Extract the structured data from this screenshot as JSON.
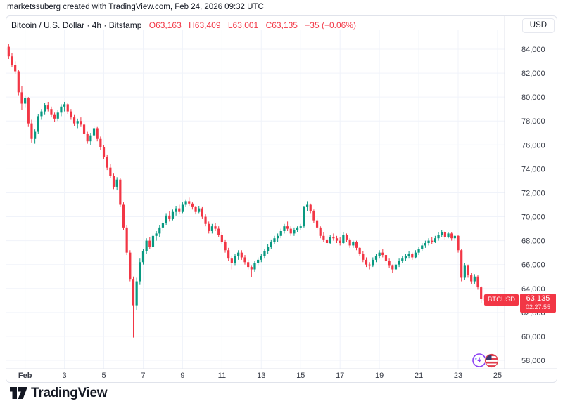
{
  "attribution": "marketssuberg created with TradingView.com, Feb 24, 2026 09:32 UTC",
  "header": {
    "symbol_line": "Bitcoin / U.S. Dollar · 4h · Bitstamp",
    "ohlc": {
      "open": "O63,163",
      "high": "H63,409",
      "low": "L63,001",
      "close": "C63,135",
      "change": "−35 (−0.06%)"
    },
    "currency_button": "USD"
  },
  "price_scale": {
    "labels": [
      "84,000",
      "82,000",
      "80,000",
      "78,000",
      "76,000",
      "74,000",
      "72,000",
      "70,000",
      "68,000",
      "66,000",
      "64,000",
      "62,000",
      "60,000",
      "58,000"
    ],
    "values": [
      84000,
      82000,
      80000,
      78000,
      76000,
      74000,
      72000,
      70000,
      68000,
      66000,
      64000,
      62000,
      60000,
      58000
    ]
  },
  "time_scale": {
    "ticks": [
      {
        "label": "Feb",
        "index": 5,
        "bold": true
      },
      {
        "label": "3",
        "index": 17
      },
      {
        "label": "5",
        "index": 29
      },
      {
        "label": "7",
        "index": 41
      },
      {
        "label": "9",
        "index": 53
      },
      {
        "label": "11",
        "index": 65
      },
      {
        "label": "13",
        "index": 77
      },
      {
        "label": "15",
        "index": 89
      },
      {
        "label": "17",
        "index": 101
      },
      {
        "label": "19",
        "index": 113
      },
      {
        "label": "21",
        "index": 125
      },
      {
        "label": "23",
        "index": 137
      },
      {
        "label": "25",
        "index": 149
      }
    ]
  },
  "last_price": {
    "badge": "BTCUSD",
    "price": "63,135",
    "countdown": "02:27:55",
    "value": 63135
  },
  "footer": {
    "brand": "TradingView"
  },
  "icons": {
    "left": "crypto-lightning-icon",
    "right": "us-flag-icon"
  },
  "colors": {
    "up": "#089981",
    "down": "#f23645",
    "grid": "#f0f3fa",
    "border": "#e0e3eb",
    "text": "#131722",
    "axis_text": "#363a45",
    "label_bg": "#f23645"
  },
  "chart_data": {
    "type": "candlestick",
    "title": "Bitcoin / U.S. Dollar",
    "symbol": "BTCUSD",
    "exchange": "Bitstamp",
    "interval": "4h",
    "x_range": "Jan 31 04:00 – Feb 24 08:00 UTC",
    "ylim": [
      57000,
      85500
    ],
    "y_tick_step": 2000,
    "current": {
      "open": 63163,
      "high": 63409,
      "low": 63001,
      "close": 63135,
      "change": -35,
      "change_pct": -0.06
    },
    "candles": [
      [
        84200,
        84420,
        83180,
        83400
      ],
      [
        83400,
        83650,
        82520,
        82700
      ],
      [
        82700,
        82980,
        81900,
        82150
      ],
      [
        82150,
        82300,
        80150,
        80400
      ],
      [
        80400,
        80900,
        78900,
        79450
      ],
      [
        79450,
        80150,
        79100,
        79900
      ],
      [
        79900,
        80000,
        77500,
        77800
      ],
      [
        77800,
        78100,
        76200,
        76500
      ],
      [
        76500,
        77300,
        76100,
        77100
      ],
      [
        77100,
        78600,
        76900,
        78400
      ],
      [
        78400,
        79000,
        78100,
        78800
      ],
      [
        78800,
        79500,
        78500,
        79300
      ],
      [
        79300,
        79600,
        78800,
        79000
      ],
      [
        79000,
        79200,
        78300,
        78500
      ],
      [
        78500,
        78700,
        77900,
        78200
      ],
      [
        78200,
        78900,
        78000,
        78700
      ],
      [
        78700,
        79400,
        78400,
        79200
      ],
      [
        79200,
        79600,
        78800,
        79400
      ],
      [
        79400,
        79500,
        78600,
        78800
      ],
      [
        78800,
        79000,
        78100,
        78300
      ],
      [
        78300,
        78500,
        77600,
        77800
      ],
      [
        77800,
        78200,
        77400,
        78000
      ],
      [
        78000,
        78300,
        77500,
        77700
      ],
      [
        77700,
        77900,
        76700,
        76900
      ],
      [
        76900,
        77100,
        76100,
        76300
      ],
      [
        76300,
        77000,
        76000,
        76800
      ],
      [
        76800,
        77600,
        76500,
        77400
      ],
      [
        77400,
        77500,
        76300,
        76500
      ],
      [
        76500,
        76700,
        75600,
        75800
      ],
      [
        75800,
        76000,
        74800,
        75000
      ],
      [
        75000,
        75200,
        73900,
        74100
      ],
      [
        74100,
        74400,
        73200,
        73400
      ],
      [
        73400,
        73600,
        72300,
        72500
      ],
      [
        72500,
        73300,
        72200,
        73100
      ],
      [
        73100,
        73200,
        70800,
        71000
      ],
      [
        71000,
        71200,
        68900,
        69100
      ],
      [
        69100,
        69300,
        66800,
        67000
      ],
      [
        67000,
        67200,
        64600,
        64800
      ],
      [
        64800,
        65000,
        59900,
        62600
      ],
      [
        62600,
        64900,
        62200,
        64600
      ],
      [
        64600,
        66500,
        64300,
        66200
      ],
      [
        66200,
        67300,
        66000,
        67100
      ],
      [
        67100,
        68200,
        66900,
        68000
      ],
      [
        68000,
        68300,
        67300,
        67500
      ],
      [
        67500,
        68600,
        67400,
        68400
      ],
      [
        68400,
        68800,
        68000,
        68600
      ],
      [
        68600,
        69300,
        68300,
        69100
      ],
      [
        69100,
        69700,
        68800,
        69500
      ],
      [
        69500,
        70300,
        69300,
        70100
      ],
      [
        70100,
        70500,
        69600,
        69800
      ],
      [
        69800,
        70600,
        69700,
        70400
      ],
      [
        70400,
        70900,
        70100,
        70700
      ],
      [
        70700,
        71000,
        70200,
        70400
      ],
      [
        70400,
        71200,
        70300,
        71000
      ],
      [
        71000,
        71400,
        70800,
        71300
      ],
      [
        71300,
        71600,
        70900,
        71100
      ],
      [
        71100,
        71200,
        70600,
        70800
      ],
      [
        70800,
        70900,
        70200,
        70400
      ],
      [
        70400,
        70900,
        70300,
        70700
      ],
      [
        70700,
        70800,
        69800,
        70000
      ],
      [
        70000,
        70200,
        69200,
        69400
      ],
      [
        69400,
        69600,
        68600,
        68800
      ],
      [
        68800,
        69400,
        68600,
        69200
      ],
      [
        69200,
        69500,
        68800,
        69000
      ],
      [
        69000,
        69200,
        68300,
        68500
      ],
      [
        68500,
        68700,
        67700,
        67900
      ],
      [
        67900,
        68100,
        67000,
        67200
      ],
      [
        67200,
        67400,
        66300,
        66500
      ],
      [
        66500,
        66700,
        65600,
        66100
      ],
      [
        66100,
        66900,
        65900,
        66700
      ],
      [
        66700,
        67200,
        66400,
        67000
      ],
      [
        67000,
        67200,
        66400,
        66600
      ],
      [
        66600,
        66800,
        66000,
        66200
      ],
      [
        66200,
        66400,
        65600,
        65800
      ],
      [
        65800,
        65900,
        64950,
        65600
      ],
      [
        65600,
        66300,
        65400,
        66100
      ],
      [
        66100,
        66600,
        65900,
        66400
      ],
      [
        66400,
        66900,
        66200,
        66700
      ],
      [
        66700,
        67300,
        66500,
        67100
      ],
      [
        67100,
        67700,
        66900,
        67500
      ],
      [
        67500,
        68100,
        67300,
        67900
      ],
      [
        67900,
        68400,
        67700,
        68200
      ],
      [
        68200,
        68600,
        67900,
        68400
      ],
      [
        68400,
        69000,
        68200,
        68800
      ],
      [
        68800,
        69400,
        68600,
        69200
      ],
      [
        69200,
        69600,
        68800,
        69000
      ],
      [
        69000,
        69200,
        68400,
        68600
      ],
      [
        68600,
        69100,
        68400,
        68900
      ],
      [
        68900,
        69200,
        68700,
        69100
      ],
      [
        69100,
        69400,
        68900,
        69200
      ],
      [
        69200,
        70900,
        69100,
        70800
      ],
      [
        70800,
        71300,
        70500,
        71000
      ],
      [
        71000,
        71100,
        70300,
        70500
      ],
      [
        70500,
        70600,
        69500,
        69700
      ],
      [
        69700,
        69900,
        68900,
        69100
      ],
      [
        69100,
        69200,
        68200,
        68400
      ],
      [
        68400,
        68700,
        67900,
        68100
      ],
      [
        68100,
        68400,
        67600,
        67800
      ],
      [
        67800,
        68500,
        67700,
        68300
      ],
      [
        68300,
        68600,
        68000,
        68200
      ],
      [
        68200,
        68400,
        67800,
        68000
      ],
      [
        68000,
        68300,
        67600,
        67800
      ],
      [
        67800,
        68700,
        67700,
        68500
      ],
      [
        68500,
        68600,
        67900,
        68100
      ],
      [
        68100,
        68200,
        67400,
        67600
      ],
      [
        67600,
        68000,
        67400,
        67900
      ],
      [
        67900,
        68000,
        67200,
        67400
      ],
      [
        67400,
        67500,
        66700,
        66900
      ],
      [
        66900,
        67100,
        66200,
        66400
      ],
      [
        66400,
        66600,
        65800,
        66000
      ],
      [
        66000,
        66200,
        65600,
        65900
      ],
      [
        65900,
        66600,
        65800,
        66400
      ],
      [
        66400,
        66900,
        66200,
        66700
      ],
      [
        66700,
        67200,
        66500,
        67000
      ],
      [
        67000,
        67300,
        66600,
        66800
      ],
      [
        66800,
        66900,
        66100,
        66300
      ],
      [
        66300,
        66500,
        65700,
        65900
      ],
      [
        65900,
        66000,
        65300,
        65600
      ],
      [
        65600,
        66200,
        65500,
        66000
      ],
      [
        66000,
        66500,
        65800,
        66300
      ],
      [
        66300,
        66700,
        66100,
        66500
      ],
      [
        66500,
        66900,
        66300,
        66700
      ],
      [
        66700,
        67100,
        66500,
        66900
      ],
      [
        66900,
        67000,
        66400,
        66600
      ],
      [
        66600,
        67200,
        66500,
        67000
      ],
      [
        67000,
        67500,
        66800,
        67300
      ],
      [
        67300,
        67800,
        67100,
        67600
      ],
      [
        67600,
        68000,
        67400,
        67800
      ],
      [
        67800,
        68200,
        67600,
        68000
      ],
      [
        68000,
        68300,
        67700,
        67900
      ],
      [
        67900,
        68400,
        67800,
        68200
      ],
      [
        68200,
        68700,
        68000,
        68500
      ],
      [
        68500,
        68900,
        68300,
        68700
      ],
      [
        68700,
        68800,
        68100,
        68300
      ],
      [
        68300,
        68700,
        68200,
        68600
      ],
      [
        68600,
        68700,
        68000,
        68200
      ],
      [
        68200,
        68500,
        68000,
        68400
      ],
      [
        68400,
        68500,
        67000,
        67200
      ],
      [
        67200,
        67300,
        64600,
        64900
      ],
      [
        64900,
        66100,
        64700,
        65900
      ],
      [
        65900,
        66000,
        64900,
        65100
      ],
      [
        65100,
        65300,
        64400,
        64600
      ],
      [
        64600,
        65200,
        64400,
        65000
      ],
      [
        65000,
        65100,
        63900,
        64100
      ],
      [
        64100,
        64200,
        62800,
        63163
      ],
      [
        63163,
        63409,
        63001,
        63135
      ]
    ]
  }
}
